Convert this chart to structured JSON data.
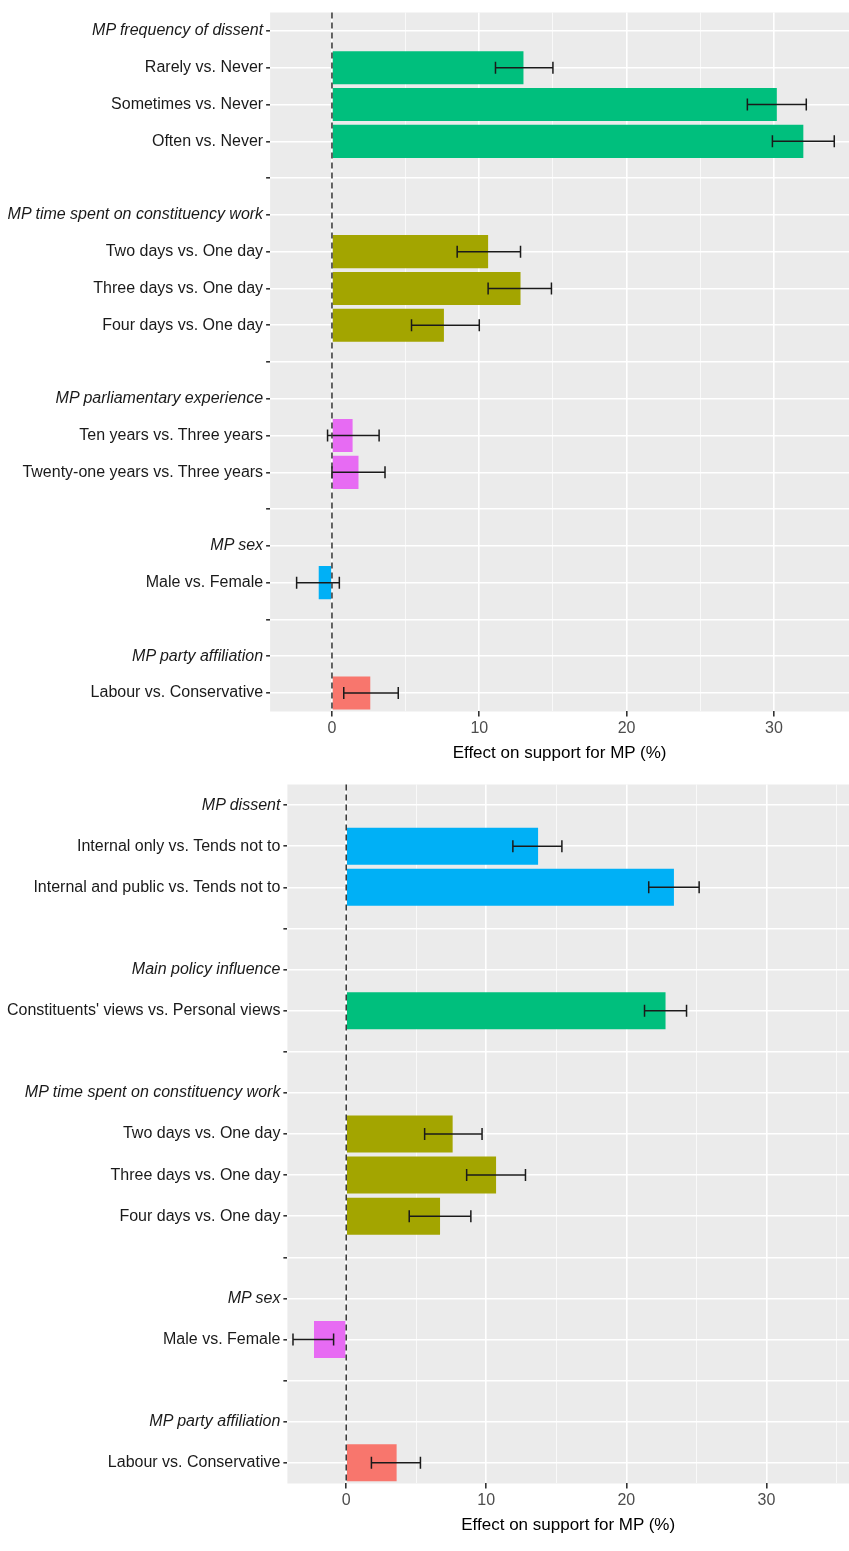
{
  "chart_data": [
    {
      "type": "bar",
      "orientation": "horizontal",
      "xlabel": "Effect on support for MP (%)",
      "categories": [
        "MP frequency of dissent",
        "Rarely vs. Never",
        "Sometimes vs. Never",
        "Often vs. Never",
        null,
        "MP time spent on constituency work",
        "Two days vs. One day",
        "Three days vs. One day",
        "Four days vs. One day",
        null,
        "MP parliamentary experience",
        "Ten years vs. Three years",
        "Twenty-one years vs. Three years",
        null,
        "MP sex",
        "Male vs. Female",
        null,
        "MP party affiliation",
        "Labour vs. Conservative"
      ],
      "values": [
        null,
        13.0,
        30.2,
        32.0,
        null,
        null,
        10.6,
        12.8,
        7.6,
        null,
        null,
        1.4,
        1.8,
        null,
        null,
        -0.9,
        null,
        null,
        2.6
      ],
      "errors": [
        null,
        [
          11.1,
          15.0
        ],
        [
          28.2,
          32.2
        ],
        [
          29.9,
          34.1
        ],
        null,
        null,
        [
          8.5,
          12.8
        ],
        [
          10.6,
          14.9
        ],
        [
          5.4,
          10.0
        ],
        null,
        null,
        [
          -0.3,
          3.2
        ],
        [
          0.0,
          3.6
        ],
        null,
        null,
        [
          -2.4,
          0.5
        ],
        null,
        null,
        [
          0.8,
          4.5
        ]
      ],
      "colors": [
        null,
        "#00bf7d",
        "#00bf7d",
        "#00bf7d",
        null,
        null,
        "#a3a500",
        "#a3a500",
        "#a3a500",
        null,
        null,
        "#e76bf3",
        "#e76bf3",
        null,
        null,
        "#00b0f6",
        null,
        null,
        "#f8766d"
      ],
      "xlim": [
        -4.2,
        35.1
      ],
      "xticks": [
        0,
        {
          "value": 5,
          "label": null
        },
        10,
        {
          "value": 15,
          "label": null
        },
        20,
        {
          "value": 25,
          "label": null
        },
        30
      ],
      "ref_lines": [
        {
          "axis": "x",
          "value": 0,
          "line_style": "dashed",
          "color": "#333333"
        }
      ],
      "grid": true,
      "legend": false
    },
    {
      "type": "bar",
      "orientation": "horizontal",
      "xlabel": "Effect on support for MP (%)",
      "categories": [
        "MP dissent",
        "Internal only vs. Tends not to",
        "Internal and public vs. Tends not to",
        null,
        "Main policy influence",
        "Constituents' views vs. Personal views",
        null,
        "MP time spent on constituency work",
        "Two days vs. One day",
        "Three days vs. One day",
        "Four days vs. One day",
        null,
        "MP sex",
        "Male vs. Female",
        null,
        "MP party affiliation",
        "Labour vs. Conservative"
      ],
      "values": [
        null,
        13.7,
        23.4,
        null,
        null,
        22.8,
        null,
        null,
        7.6,
        10.7,
        6.7,
        null,
        null,
        -2.3,
        null,
        null,
        3.6
      ],
      "errors": [
        null,
        [
          11.9,
          15.4
        ],
        [
          21.6,
          25.2
        ],
        null,
        null,
        [
          21.3,
          24.3
        ],
        null,
        null,
        [
          5.6,
          9.7
        ],
        [
          8.6,
          12.8
        ],
        [
          4.5,
          8.9
        ],
        null,
        null,
        [
          -3.8,
          -0.9
        ],
        null,
        null,
        [
          1.8,
          5.3
        ]
      ],
      "colors": [
        null,
        "#00b0f6",
        "#00b0f6",
        null,
        null,
        "#00bf7d",
        null,
        null,
        "#a3a500",
        "#a3a500",
        "#a3a500",
        null,
        null,
        "#e76bf3",
        null,
        null,
        "#f8766d"
      ],
      "xlim": [
        -4.2,
        35.9
      ],
      "xticks": [
        0,
        {
          "value": 5,
          "label": null
        },
        10,
        {
          "value": 15,
          "label": null
        },
        20,
        {
          "value": 25,
          "label": null
        },
        30,
        {
          "value": 35,
          "label": null
        }
      ],
      "ref_lines": [
        {
          "axis": "x",
          "value": 0,
          "line_style": "dashed",
          "color": "#333333"
        }
      ],
      "grid": true,
      "legend": false
    }
  ]
}
